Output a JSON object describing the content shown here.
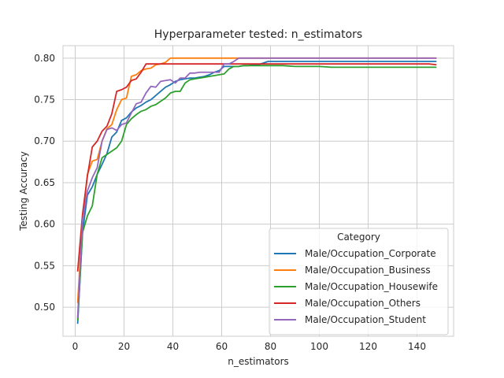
{
  "chart_data": {
    "type": "line",
    "title": "Hyperparameter tested: n_estimators",
    "xlabel": "n_estimators",
    "ylabel": "Testing Accuracy",
    "xlim": [
      -5,
      155
    ],
    "ylim": [
      0.465,
      0.815
    ],
    "xticks": [
      0,
      20,
      40,
      60,
      80,
      100,
      120,
      140
    ],
    "yticks": [
      0.5,
      0.55,
      0.6,
      0.65,
      0.7,
      0.75,
      0.8
    ],
    "ytick_labels": [
      "0.50",
      "0.55",
      "0.60",
      "0.65",
      "0.70",
      "0.75",
      "0.80"
    ],
    "grid": true,
    "legend": {
      "title": "Category",
      "position": "lower-right"
    },
    "series": [
      {
        "name": "Male/Occupation_Corporate",
        "color": "#1f77b4",
        "points": [
          [
            1,
            0.48
          ],
          [
            3,
            0.59
          ],
          [
            5,
            0.635
          ],
          [
            7,
            0.645
          ],
          [
            9,
            0.66
          ],
          [
            11,
            0.672
          ],
          [
            13,
            0.685
          ],
          [
            15,
            0.705
          ],
          [
            17,
            0.711
          ],
          [
            19,
            0.725
          ],
          [
            21,
            0.728
          ],
          [
            23,
            0.735
          ],
          [
            25,
            0.74
          ],
          [
            27,
            0.743
          ],
          [
            29,
            0.747
          ],
          [
            31,
            0.75
          ],
          [
            33,
            0.755
          ],
          [
            35,
            0.76
          ],
          [
            37,
            0.765
          ],
          [
            39,
            0.768
          ],
          [
            41,
            0.772
          ],
          [
            43,
            0.774
          ],
          [
            45,
            0.775
          ],
          [
            47,
            0.776
          ],
          [
            49,
            0.776
          ],
          [
            51,
            0.777
          ],
          [
            53,
            0.778
          ],
          [
            55,
            0.78
          ],
          [
            57,
            0.783
          ],
          [
            59,
            0.785
          ],
          [
            61,
            0.79
          ],
          [
            63,
            0.79
          ],
          [
            65,
            0.79
          ],
          [
            67,
            0.79
          ],
          [
            69,
            0.791
          ],
          [
            71,
            0.791
          ],
          [
            73,
            0.792
          ],
          [
            75,
            0.792
          ],
          [
            77,
            0.794
          ],
          [
            79,
            0.796
          ],
          [
            81,
            0.796
          ],
          [
            85,
            0.796
          ],
          [
            90,
            0.796
          ],
          [
            100,
            0.796
          ],
          [
            110,
            0.796
          ],
          [
            120,
            0.796
          ],
          [
            130,
            0.796
          ],
          [
            140,
            0.796
          ],
          [
            148,
            0.796
          ]
        ]
      },
      {
        "name": "Male/Occupation_Business",
        "color": "#ff7f0e",
        "points": [
          [
            1,
            0.505
          ],
          [
            3,
            0.605
          ],
          [
            5,
            0.66
          ],
          [
            7,
            0.676
          ],
          [
            9,
            0.678
          ],
          [
            11,
            0.7
          ],
          [
            13,
            0.715
          ],
          [
            15,
            0.72
          ],
          [
            17,
            0.738
          ],
          [
            19,
            0.75
          ],
          [
            21,
            0.752
          ],
          [
            23,
            0.778
          ],
          [
            25,
            0.78
          ],
          [
            27,
            0.785
          ],
          [
            29,
            0.787
          ],
          [
            31,
            0.788
          ],
          [
            33,
            0.792
          ],
          [
            35,
            0.793
          ],
          [
            37,
            0.795
          ],
          [
            39,
            0.8
          ],
          [
            41,
            0.8
          ],
          [
            45,
            0.8
          ],
          [
            50,
            0.8
          ],
          [
            55,
            0.8
          ],
          [
            60,
            0.8
          ],
          [
            65,
            0.8
          ],
          [
            70,
            0.8
          ],
          [
            80,
            0.8
          ],
          [
            90,
            0.8
          ],
          [
            100,
            0.8
          ],
          [
            110,
            0.8
          ],
          [
            120,
            0.8
          ],
          [
            130,
            0.8
          ],
          [
            140,
            0.8
          ],
          [
            148,
            0.8
          ]
        ]
      },
      {
        "name": "Male/Occupation_Housewife",
        "color": "#2ca02c",
        "points": [
          [
            1,
            0.484
          ],
          [
            3,
            0.59
          ],
          [
            5,
            0.61
          ],
          [
            7,
            0.622
          ],
          [
            9,
            0.66
          ],
          [
            11,
            0.68
          ],
          [
            13,
            0.684
          ],
          [
            15,
            0.688
          ],
          [
            17,
            0.692
          ],
          [
            19,
            0.7
          ],
          [
            21,
            0.72
          ],
          [
            23,
            0.727
          ],
          [
            25,
            0.732
          ],
          [
            27,
            0.736
          ],
          [
            29,
            0.738
          ],
          [
            31,
            0.742
          ],
          [
            33,
            0.744
          ],
          [
            35,
            0.748
          ],
          [
            37,
            0.752
          ],
          [
            39,
            0.758
          ],
          [
            41,
            0.76
          ],
          [
            43,
            0.76
          ],
          [
            45,
            0.77
          ],
          [
            47,
            0.774
          ],
          [
            49,
            0.775
          ],
          [
            51,
            0.776
          ],
          [
            53,
            0.777
          ],
          [
            55,
            0.778
          ],
          [
            57,
            0.779
          ],
          [
            59,
            0.78
          ],
          [
            61,
            0.781
          ],
          [
            63,
            0.787
          ],
          [
            65,
            0.79
          ],
          [
            67,
            0.79
          ],
          [
            69,
            0.791
          ],
          [
            71,
            0.791
          ],
          [
            75,
            0.791
          ],
          [
            80,
            0.791
          ],
          [
            85,
            0.791
          ],
          [
            90,
            0.79
          ],
          [
            95,
            0.79
          ],
          [
            100,
            0.79
          ],
          [
            105,
            0.789
          ],
          [
            110,
            0.789
          ],
          [
            120,
            0.789
          ],
          [
            130,
            0.789
          ],
          [
            140,
            0.789
          ],
          [
            148,
            0.789
          ]
        ]
      },
      {
        "name": "Male/Occupation_Others",
        "color": "#d62728",
        "points": [
          [
            1,
            0.543
          ],
          [
            3,
            0.612
          ],
          [
            5,
            0.658
          ],
          [
            7,
            0.693
          ],
          [
            9,
            0.7
          ],
          [
            11,
            0.712
          ],
          [
            13,
            0.718
          ],
          [
            15,
            0.733
          ],
          [
            17,
            0.76
          ],
          [
            19,
            0.762
          ],
          [
            21,
            0.765
          ],
          [
            23,
            0.773
          ],
          [
            25,
            0.775
          ],
          [
            27,
            0.783
          ],
          [
            29,
            0.793
          ],
          [
            31,
            0.793
          ],
          [
            35,
            0.793
          ],
          [
            40,
            0.793
          ],
          [
            45,
            0.793
          ],
          [
            50,
            0.793
          ],
          [
            55,
            0.793
          ],
          [
            60,
            0.793
          ],
          [
            70,
            0.793
          ],
          [
            80,
            0.793
          ],
          [
            90,
            0.793
          ],
          [
            100,
            0.793
          ],
          [
            110,
            0.793
          ],
          [
            120,
            0.793
          ],
          [
            130,
            0.793
          ],
          [
            140,
            0.793
          ],
          [
            145,
            0.793
          ],
          [
            148,
            0.792
          ]
        ]
      },
      {
        "name": "Male/Occupation_Student",
        "color": "#9467bd",
        "points": [
          [
            1,
            0.487
          ],
          [
            3,
            0.605
          ],
          [
            5,
            0.64
          ],
          [
            7,
            0.656
          ],
          [
            9,
            0.668
          ],
          [
            11,
            0.7
          ],
          [
            13,
            0.714
          ],
          [
            15,
            0.716
          ],
          [
            17,
            0.713
          ],
          [
            19,
            0.72
          ],
          [
            21,
            0.722
          ],
          [
            23,
            0.734
          ],
          [
            25,
            0.745
          ],
          [
            27,
            0.747
          ],
          [
            29,
            0.758
          ],
          [
            31,
            0.766
          ],
          [
            33,
            0.765
          ],
          [
            35,
            0.772
          ],
          [
            37,
            0.773
          ],
          [
            39,
            0.774
          ],
          [
            41,
            0.77
          ],
          [
            43,
            0.776
          ],
          [
            45,
            0.776
          ],
          [
            47,
            0.782
          ],
          [
            49,
            0.782
          ],
          [
            51,
            0.783
          ],
          [
            53,
            0.783
          ],
          [
            55,
            0.783
          ],
          [
            57,
            0.783
          ],
          [
            59,
            0.783
          ],
          [
            61,
            0.793
          ],
          [
            63,
            0.793
          ],
          [
            65,
            0.796
          ],
          [
            67,
            0.8
          ],
          [
            69,
            0.8
          ],
          [
            71,
            0.8
          ],
          [
            75,
            0.8
          ],
          [
            80,
            0.8
          ],
          [
            90,
            0.8
          ],
          [
            100,
            0.8
          ],
          [
            110,
            0.8
          ],
          [
            120,
            0.8
          ],
          [
            130,
            0.8
          ],
          [
            140,
            0.8
          ],
          [
            148,
            0.8
          ]
        ]
      }
    ]
  }
}
